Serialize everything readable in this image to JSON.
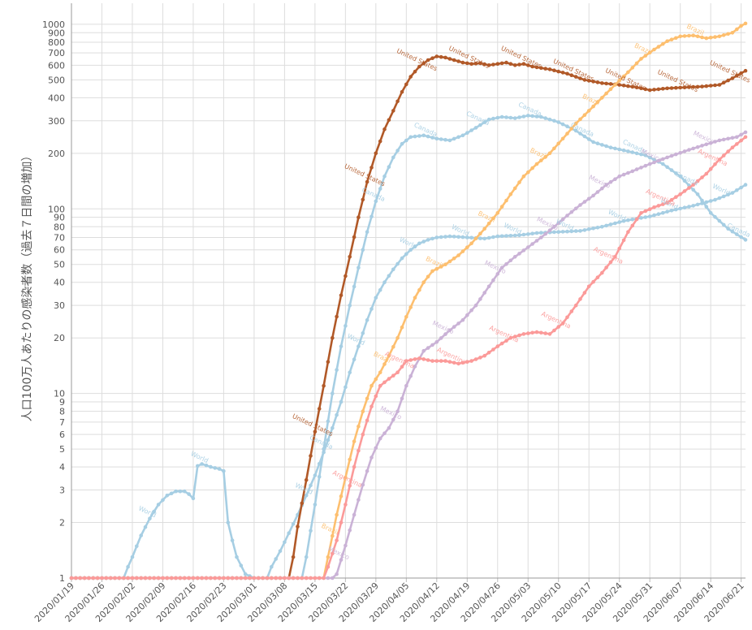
{
  "chart_data": {
    "type": "line",
    "ylabel": "人口100万人あたりの感染者数（過去７日間の増加）",
    "yscale": "log",
    "ylim": [
      1,
      1300
    ],
    "xlim": [
      "2020-01-19",
      "2020-06-22"
    ],
    "yticks": [
      1,
      2,
      3,
      4,
      5,
      6,
      7,
      8,
      9,
      10,
      20,
      30,
      40,
      50,
      60,
      70,
      80,
      90,
      100,
      200,
      300,
      400,
      500,
      600,
      700,
      800,
      900,
      1000
    ],
    "xticks": [
      "2020/01/19",
      "2020/01/26",
      "2020/02/02",
      "2020/02/09",
      "2020/02/16",
      "2020/02/23",
      "2020/03/01",
      "2020/03/08",
      "2020/03/15",
      "2020/03/22",
      "2020/03/29",
      "2020/04/05",
      "2020/04/12",
      "2020/04/19",
      "2020/04/26",
      "2020/05/03",
      "2020/05/10",
      "2020/05/17",
      "2020/05/24",
      "2020/05/31",
      "2020/06/07",
      "2020/06/14",
      "2020/06/21"
    ],
    "grid": true,
    "legend": "none",
    "series": [
      {
        "name": "World",
        "color": "#a6cee3",
        "points": [
          [
            "2020-01-19",
            1
          ],
          [
            "2020-01-31",
            1
          ],
          [
            "2020-02-01",
            1.15
          ],
          [
            "2020-02-02",
            1.3
          ],
          [
            "2020-02-04",
            1.7
          ],
          [
            "2020-02-06",
            2.1
          ],
          [
            "2020-02-08",
            2.5
          ],
          [
            "2020-02-10",
            2.8
          ],
          [
            "2020-02-12",
            2.95
          ],
          [
            "2020-02-14",
            2.95
          ],
          [
            "2020-02-15",
            2.85
          ],
          [
            "2020-02-16",
            2.7
          ],
          [
            "2020-02-17",
            4.05
          ],
          [
            "2020-02-18",
            4.15
          ],
          [
            "2020-02-20",
            4.0
          ],
          [
            "2020-02-22",
            3.9
          ],
          [
            "2020-02-23",
            3.8
          ],
          [
            "2020-02-24",
            2.0
          ],
          [
            "2020-02-25",
            1.6
          ],
          [
            "2020-02-26",
            1.3
          ],
          [
            "2020-02-28",
            1.05
          ],
          [
            "2020-03-01",
            1
          ],
          [
            "2020-03-04",
            1
          ],
          [
            "2020-03-05",
            1.15
          ],
          [
            "2020-03-07",
            1.4
          ],
          [
            "2020-03-09",
            1.75
          ],
          [
            "2020-03-11",
            2.2
          ],
          [
            "2020-03-13",
            2.8
          ],
          [
            "2020-03-15",
            3.6
          ],
          [
            "2020-03-17",
            4.8
          ],
          [
            "2020-03-19",
            6.5
          ],
          [
            "2020-03-21",
            9
          ],
          [
            "2020-03-23",
            13
          ],
          [
            "2020-03-25",
            18
          ],
          [
            "2020-03-27",
            25
          ],
          [
            "2020-03-29",
            33
          ],
          [
            "2020-03-31",
            40
          ],
          [
            "2020-04-02",
            47
          ],
          [
            "2020-04-04",
            54
          ],
          [
            "2020-04-06",
            60
          ],
          [
            "2020-04-08",
            65
          ],
          [
            "2020-04-10",
            68
          ],
          [
            "2020-04-12",
            70
          ],
          [
            "2020-04-15",
            71
          ],
          [
            "2020-04-19",
            70
          ],
          [
            "2020-04-23",
            69
          ],
          [
            "2020-04-26",
            71
          ],
          [
            "2020-05-01",
            72
          ],
          [
            "2020-05-05",
            74
          ],
          [
            "2020-05-10",
            75
          ],
          [
            "2020-05-15",
            76
          ],
          [
            "2020-05-20",
            80
          ],
          [
            "2020-05-25",
            86
          ],
          [
            "2020-05-31",
            91
          ],
          [
            "2020-06-05",
            98
          ],
          [
            "2020-06-10",
            104
          ],
          [
            "2020-06-15",
            112
          ],
          [
            "2020-06-19",
            122
          ],
          [
            "2020-06-22",
            135
          ]
        ]
      },
      {
        "name": "United States",
        "color": "#b15928",
        "points": [
          [
            "2020-01-19",
            1
          ],
          [
            "2020-03-09",
            1
          ],
          [
            "2020-03-10",
            1.3
          ],
          [
            "2020-03-11",
            1.9
          ],
          [
            "2020-03-13",
            3.4
          ],
          [
            "2020-03-15",
            6.2
          ],
          [
            "2020-03-17",
            11
          ],
          [
            "2020-03-19",
            20
          ],
          [
            "2020-03-21",
            34
          ],
          [
            "2020-03-23",
            55
          ],
          [
            "2020-03-25",
            90
          ],
          [
            "2020-03-27",
            140
          ],
          [
            "2020-03-29",
            200
          ],
          [
            "2020-03-31",
            270
          ],
          [
            "2020-04-02",
            340
          ],
          [
            "2020-04-04",
            430
          ],
          [
            "2020-04-06",
            520
          ],
          [
            "2020-04-08",
            590
          ],
          [
            "2020-04-10",
            640
          ],
          [
            "2020-04-12",
            670
          ],
          [
            "2020-04-14",
            660
          ],
          [
            "2020-04-16",
            640
          ],
          [
            "2020-04-18",
            620
          ],
          [
            "2020-04-20",
            610
          ],
          [
            "2020-04-22",
            615
          ],
          [
            "2020-04-24",
            600
          ],
          [
            "2020-04-26",
            610
          ],
          [
            "2020-04-28",
            620
          ],
          [
            "2020-04-30",
            600
          ],
          [
            "2020-05-02",
            610
          ],
          [
            "2020-05-04",
            590
          ],
          [
            "2020-05-06",
            580
          ],
          [
            "2020-05-08",
            570
          ],
          [
            "2020-05-12",
            540
          ],
          [
            "2020-05-16",
            500
          ],
          [
            "2020-05-20",
            480
          ],
          [
            "2020-05-24",
            470
          ],
          [
            "2020-05-28",
            455
          ],
          [
            "2020-05-31",
            440
          ],
          [
            "2020-06-04",
            450
          ],
          [
            "2020-06-08",
            455
          ],
          [
            "2020-06-12",
            460
          ],
          [
            "2020-06-16",
            470
          ],
          [
            "2020-06-19",
            510
          ],
          [
            "2020-06-22",
            560
          ]
        ]
      },
      {
        "name": "Canada",
        "color": "#a6cee3",
        "points": [
          [
            "2020-01-19",
            1
          ],
          [
            "2020-03-12",
            1
          ],
          [
            "2020-03-13",
            1.3
          ],
          [
            "2020-03-15",
            2.5
          ],
          [
            "2020-03-17",
            5
          ],
          [
            "2020-03-19",
            10
          ],
          [
            "2020-03-21",
            18
          ],
          [
            "2020-03-23",
            30
          ],
          [
            "2020-03-25",
            48
          ],
          [
            "2020-03-27",
            75
          ],
          [
            "2020-03-29",
            110
          ],
          [
            "2020-03-31",
            150
          ],
          [
            "2020-04-02",
            190
          ],
          [
            "2020-04-04",
            225
          ],
          [
            "2020-04-06",
            245
          ],
          [
            "2020-04-09",
            250
          ],
          [
            "2020-04-12",
            240
          ],
          [
            "2020-04-15",
            235
          ],
          [
            "2020-04-18",
            250
          ],
          [
            "2020-04-21",
            275
          ],
          [
            "2020-04-24",
            305
          ],
          [
            "2020-04-27",
            315
          ],
          [
            "2020-04-30",
            310
          ],
          [
            "2020-05-03",
            320
          ],
          [
            "2020-05-06",
            315
          ],
          [
            "2020-05-10",
            295
          ],
          [
            "2020-05-14",
            265
          ],
          [
            "2020-05-18",
            230
          ],
          [
            "2020-05-22",
            215
          ],
          [
            "2020-05-26",
            205
          ],
          [
            "2020-05-30",
            195
          ],
          [
            "2020-06-03",
            175
          ],
          [
            "2020-06-07",
            150
          ],
          [
            "2020-06-11",
            120
          ],
          [
            "2020-06-14",
            95
          ],
          [
            "2020-06-18",
            78
          ],
          [
            "2020-06-22",
            68
          ]
        ]
      },
      {
        "name": "Brazil",
        "color": "#fdbf6f",
        "points": [
          [
            "2020-01-19",
            1
          ],
          [
            "2020-03-17",
            1
          ],
          [
            "2020-03-18",
            1.3
          ],
          [
            "2020-03-20",
            2.2
          ],
          [
            "2020-03-22",
            3.5
          ],
          [
            "2020-03-24",
            5.5
          ],
          [
            "2020-03-26",
            8
          ],
          [
            "2020-03-28",
            11
          ],
          [
            "2020-03-30",
            13
          ],
          [
            "2020-04-01",
            16
          ],
          [
            "2020-04-03",
            20
          ],
          [
            "2020-04-05",
            26
          ],
          [
            "2020-04-07",
            33
          ],
          [
            "2020-04-09",
            40
          ],
          [
            "2020-04-11",
            46
          ],
          [
            "2020-04-14",
            50
          ],
          [
            "2020-04-17",
            56
          ],
          [
            "2020-04-20",
            65
          ],
          [
            "2020-04-23",
            78
          ],
          [
            "2020-04-26",
            95
          ],
          [
            "2020-04-29",
            120
          ],
          [
            "2020-05-02",
            150
          ],
          [
            "2020-05-05",
            175
          ],
          [
            "2020-05-08",
            200
          ],
          [
            "2020-05-11",
            240
          ],
          [
            "2020-05-14",
            290
          ],
          [
            "2020-05-17",
            340
          ],
          [
            "2020-05-20",
            400
          ],
          [
            "2020-05-23",
            470
          ],
          [
            "2020-05-26",
            550
          ],
          [
            "2020-05-29",
            650
          ],
          [
            "2020-06-01",
            730
          ],
          [
            "2020-06-04",
            810
          ],
          [
            "2020-06-07",
            860
          ],
          [
            "2020-06-10",
            870
          ],
          [
            "2020-06-13",
            840
          ],
          [
            "2020-06-16",
            860
          ],
          [
            "2020-06-19",
            900
          ],
          [
            "2020-06-21",
            980
          ],
          [
            "2020-06-22",
            1010
          ]
        ]
      },
      {
        "name": "Mexico",
        "color": "#cab2d6",
        "points": [
          [
            "2020-01-19",
            1
          ],
          [
            "2020-03-19",
            1
          ],
          [
            "2020-03-20",
            1.05
          ],
          [
            "2020-03-22",
            1.5
          ],
          [
            "2020-03-24",
            2.2
          ],
          [
            "2020-03-26",
            3.2
          ],
          [
            "2020-03-28",
            4.5
          ],
          [
            "2020-03-30",
            5.7
          ],
          [
            "2020-04-01",
            6.5
          ],
          [
            "2020-04-03",
            8
          ],
          [
            "2020-04-05",
            11
          ],
          [
            "2020-04-07",
            14
          ],
          [
            "2020-04-09",
            17
          ],
          [
            "2020-04-12",
            19
          ],
          [
            "2020-04-15",
            22
          ],
          [
            "2020-04-18",
            25
          ],
          [
            "2020-04-21",
            30
          ],
          [
            "2020-04-24",
            38
          ],
          [
            "2020-04-27",
            48
          ],
          [
            "2020-04-30",
            55
          ],
          [
            "2020-05-03",
            62
          ],
          [
            "2020-05-06",
            70
          ],
          [
            "2020-05-09",
            80
          ],
          [
            "2020-05-12",
            92
          ],
          [
            "2020-05-15",
            105
          ],
          [
            "2020-05-18",
            118
          ],
          [
            "2020-05-21",
            135
          ],
          [
            "2020-05-24",
            150
          ],
          [
            "2020-05-27",
            160
          ],
          [
            "2020-05-31",
            175
          ],
          [
            "2020-06-04",
            190
          ],
          [
            "2020-06-08",
            205
          ],
          [
            "2020-06-12",
            220
          ],
          [
            "2020-06-16",
            235
          ],
          [
            "2020-06-20",
            245
          ],
          [
            "2020-06-22",
            260
          ]
        ]
      },
      {
        "name": "Argentina",
        "color": "#fb9a99",
        "points": [
          [
            "2020-01-19",
            1
          ],
          [
            "2020-03-17",
            1
          ],
          [
            "2020-03-18",
            1.15
          ],
          [
            "2020-03-20",
            1.6
          ],
          [
            "2020-03-22",
            2.5
          ],
          [
            "2020-03-24",
            4
          ],
          [
            "2020-03-26",
            6
          ],
          [
            "2020-03-28",
            8.5
          ],
          [
            "2020-03-30",
            11
          ],
          [
            "2020-04-01",
            12
          ],
          [
            "2020-04-03",
            13
          ],
          [
            "2020-04-05",
            15
          ],
          [
            "2020-04-08",
            15.5
          ],
          [
            "2020-04-11",
            15
          ],
          [
            "2020-04-14",
            15
          ],
          [
            "2020-04-17",
            14.5
          ],
          [
            "2020-04-20",
            15
          ],
          [
            "2020-04-23",
            16
          ],
          [
            "2020-04-26",
            18
          ],
          [
            "2020-04-29",
            20
          ],
          [
            "2020-05-02",
            21
          ],
          [
            "2020-05-05",
            21.5
          ],
          [
            "2020-05-08",
            21
          ],
          [
            "2020-05-11",
            24
          ],
          [
            "2020-05-14",
            30
          ],
          [
            "2020-05-17",
            38
          ],
          [
            "2020-05-20",
            45
          ],
          [
            "2020-05-23",
            55
          ],
          [
            "2020-05-26",
            75
          ],
          [
            "2020-05-29",
            95
          ],
          [
            "2020-06-01",
            102
          ],
          [
            "2020-06-04",
            108
          ],
          [
            "2020-06-07",
            120
          ],
          [
            "2020-06-10",
            135
          ],
          [
            "2020-06-13",
            155
          ],
          [
            "2020-06-16",
            185
          ],
          [
            "2020-06-19",
            215
          ],
          [
            "2020-06-22",
            245
          ]
        ]
      }
    ]
  }
}
